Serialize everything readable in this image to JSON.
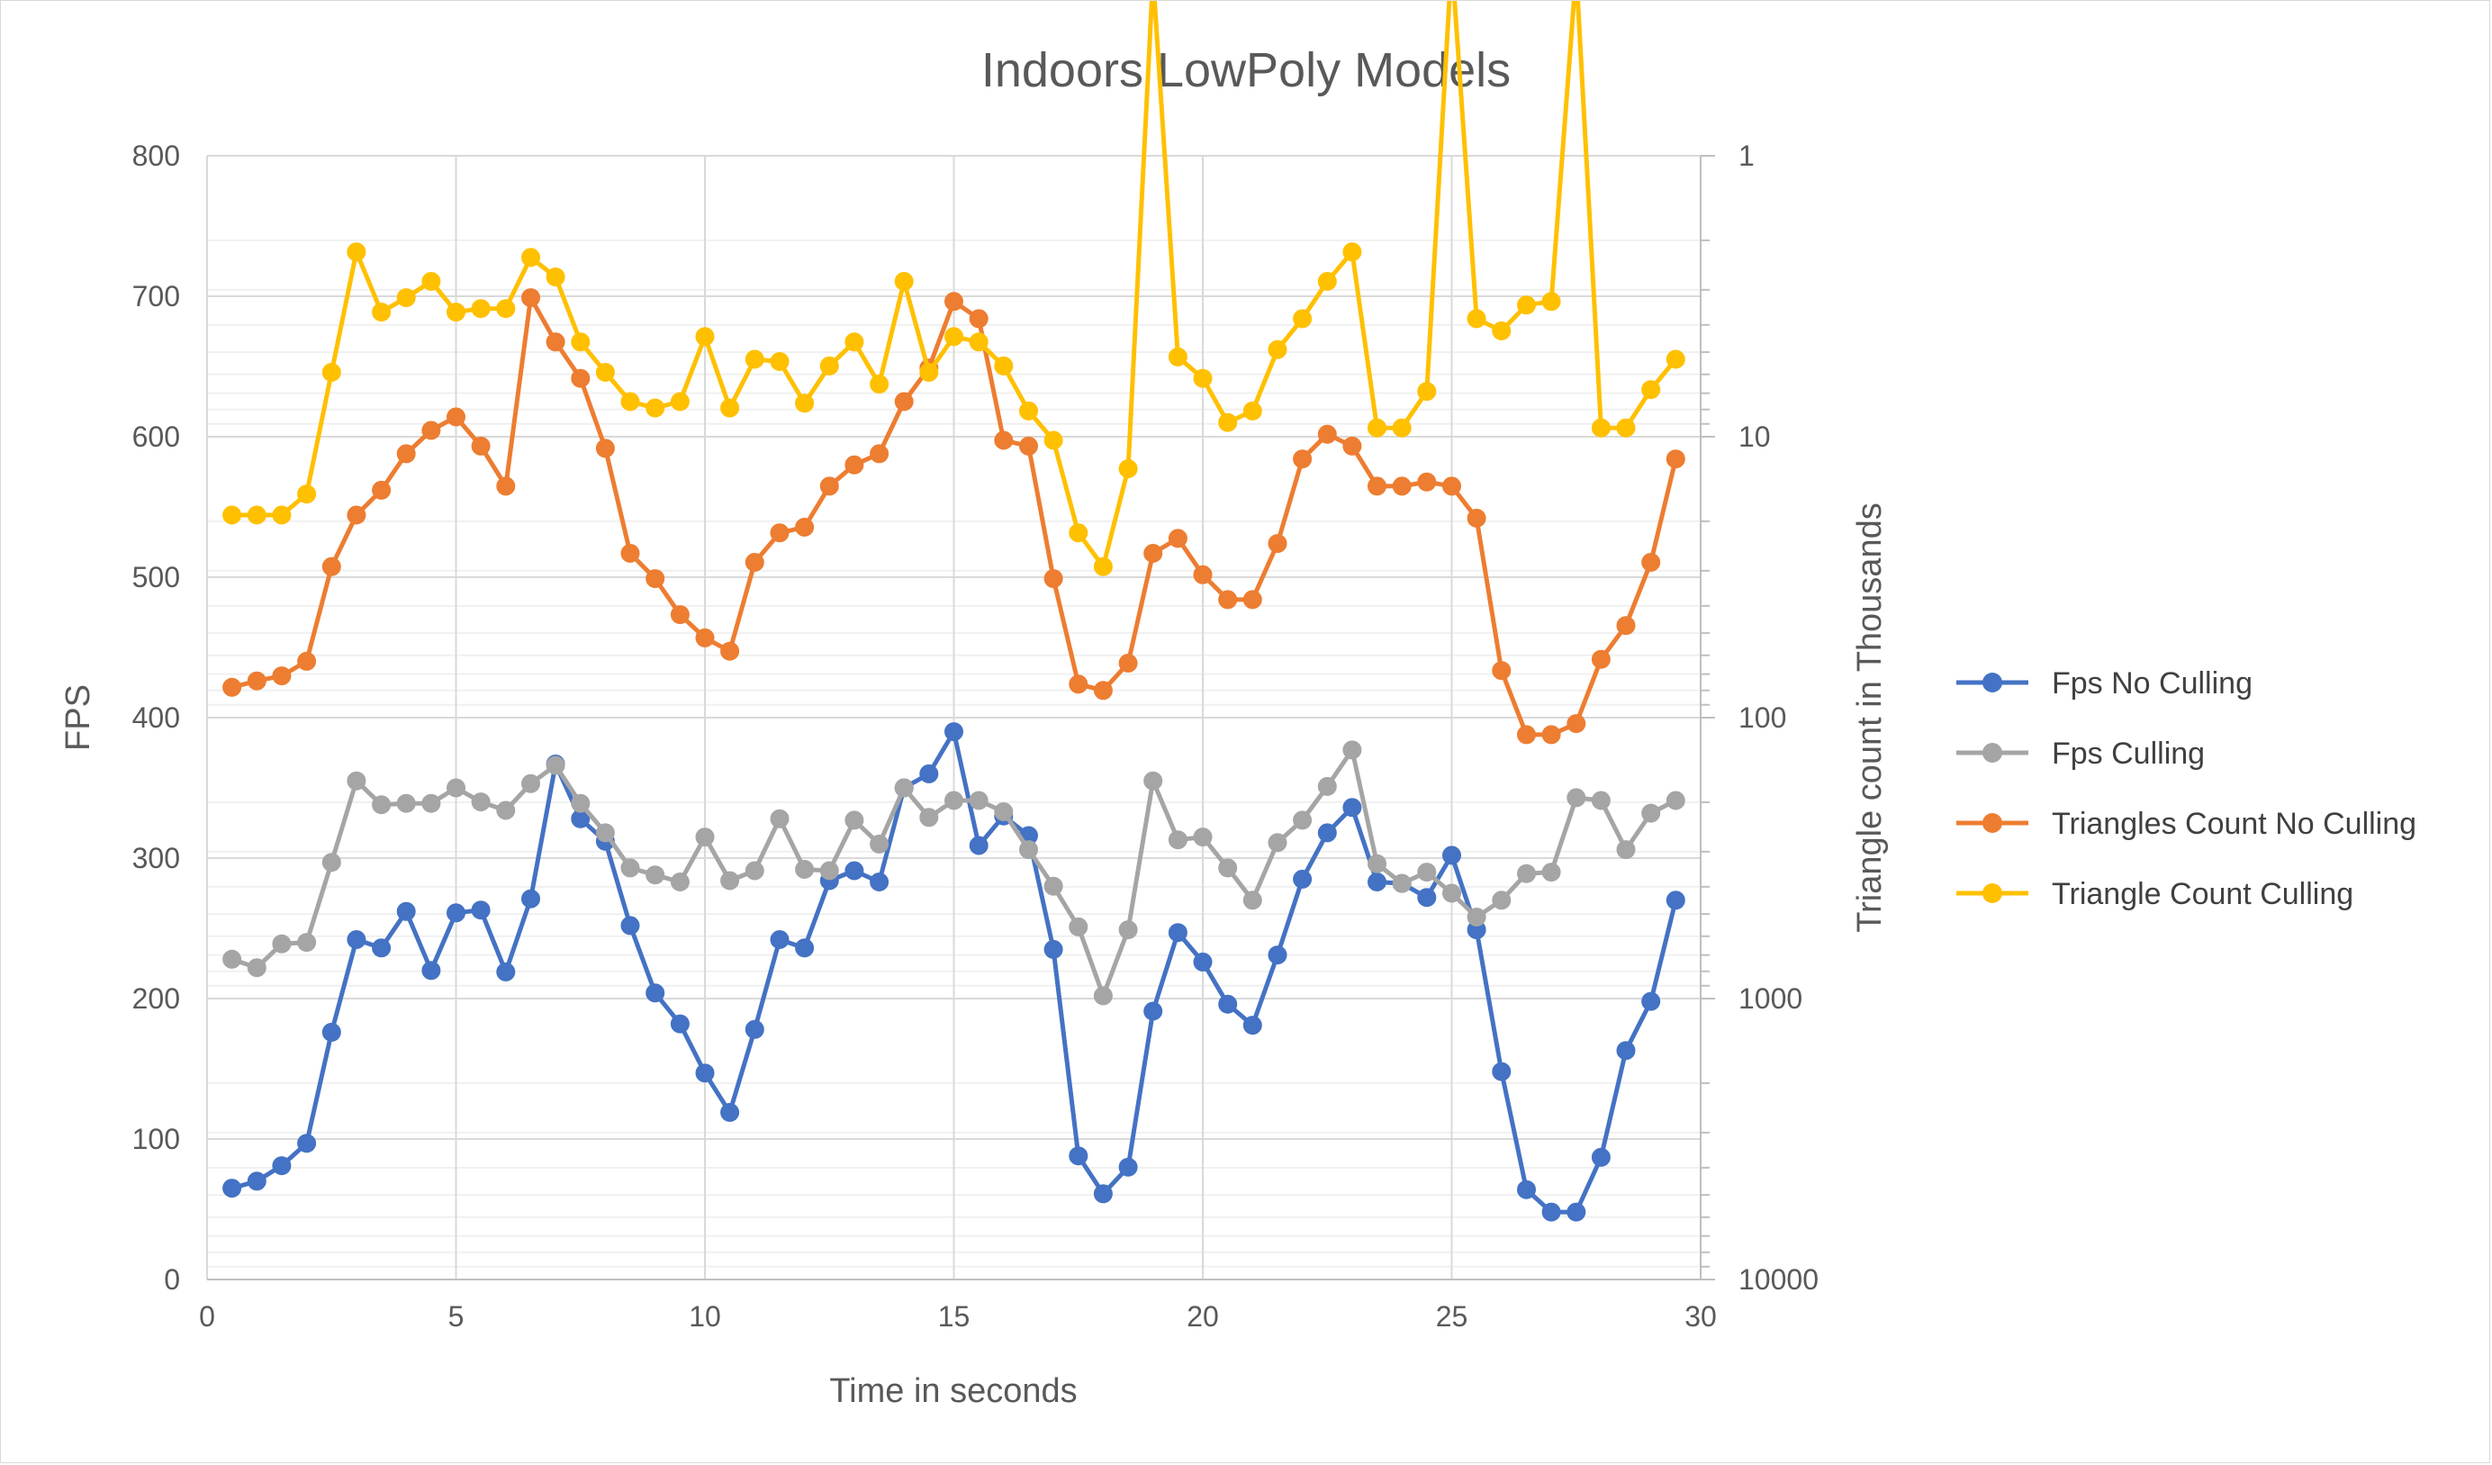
{
  "chart_data": {
    "type": "line",
    "title": "Indoors LowPoly Models",
    "xlabel": "Time in seconds",
    "ylabel": "FPS",
    "y2label": "Triangle count in Thousands",
    "xlim": [
      0,
      30
    ],
    "ylim": [
      0,
      800
    ],
    "y2lim": [
      1,
      10000
    ],
    "y2_scale": "log",
    "x_ticks": [
      "0",
      "5",
      "10",
      "15",
      "20",
      "25",
      "30"
    ],
    "y_ticks": [
      "0",
      "100",
      "200",
      "300",
      "400",
      "500",
      "600",
      "700",
      "800"
    ],
    "y2_ticks": [
      "1",
      "10",
      "100",
      "1000",
      "10000"
    ],
    "grid": true,
    "legend_position": "right",
    "x": [
      0.5,
      1.0,
      1.5,
      2.0,
      2.5,
      3.0,
      3.5,
      4.0,
      4.5,
      5.0,
      5.5,
      6.0,
      6.5,
      7.0,
      7.5,
      8.0,
      8.5,
      9.0,
      9.5,
      10.0,
      10.5,
      11.0,
      11.5,
      12.0,
      12.5,
      13.0,
      13.5,
      14.0,
      14.5,
      15.0,
      15.5,
      16.0,
      16.5,
      17.0,
      17.5,
      18.0,
      18.5,
      19.0,
      19.5,
      20.0,
      20.5,
      21.0,
      21.5,
      22.0,
      22.5,
      23.0,
      23.5,
      24.0,
      24.5,
      25.0,
      25.5,
      26.0,
      26.5,
      27.0,
      27.5,
      28.0,
      28.5,
      29.0,
      29.5
    ],
    "series": [
      {
        "name": "Fps No Culling",
        "axis": "left",
        "color": "#4472c4",
        "values": [
          65,
          70,
          81,
          97,
          176,
          242,
          236,
          262,
          220,
          261,
          263,
          219,
          271,
          367,
          328,
          312,
          252,
          204,
          182,
          147,
          119,
          178,
          242,
          236,
          284,
          291,
          283,
          350,
          360,
          390,
          309,
          330,
          316,
          235,
          88,
          61,
          80,
          191,
          247,
          226,
          196,
          181,
          231,
          285,
          318,
          336,
          283,
          282,
          272,
          302,
          249,
          148,
          64,
          48,
          48,
          87,
          163,
          198,
          270
        ]
      },
      {
        "name": "Fps Culling",
        "axis": "left",
        "color": "#a5a5a5",
        "values": [
          228,
          222,
          239,
          240,
          297,
          355,
          338,
          339,
          339,
          350,
          340,
          334,
          353,
          366,
          339,
          318,
          293,
          288,
          283,
          315,
          284,
          291,
          328,
          292,
          291,
          327,
          310,
          350,
          329,
          341,
          341,
          333,
          306,
          280,
          251,
          202,
          249,
          355,
          313,
          315,
          293,
          270,
          311,
          327,
          351,
          377,
          296,
          282,
          290,
          275,
          258,
          270,
          289,
          290,
          343,
          341,
          306,
          332,
          341
        ]
      },
      {
        "name": "Triangles Count No Culling",
        "axis": "right",
        "color": "#ed7d31",
        "values": [
          78,
          74,
          71,
          63,
          29,
          19,
          15.5,
          11.5,
          9.5,
          8.5,
          10.8,
          15,
          3.2,
          4.6,
          6.2,
          11,
          26,
          32,
          43,
          52,
          58,
          28,
          22,
          21,
          15,
          12.6,
          11.5,
          7.5,
          5.7,
          3.3,
          3.8,
          10.3,
          10.8,
          32,
          76,
          80,
          64,
          26,
          23,
          31,
          38,
          38,
          24,
          12,
          9.8,
          10.8,
          15,
          15,
          14.5,
          15,
          19.5,
          68,
          115,
          115,
          105,
          62,
          47,
          28,
          12
        ]
      },
      {
        "name": "Triangle Count Culling",
        "axis": "right",
        "color": "#ffc000",
        "values": [
          19,
          19,
          19,
          16,
          5.9,
          2.2,
          3.6,
          3.2,
          2.8,
          3.6,
          3.5,
          3.5,
          2.3,
          2.7,
          4.6,
          5.9,
          7.5,
          7.9,
          7.5,
          4.4,
          7.9,
          5.3,
          5.4,
          7.6,
          5.6,
          4.6,
          6.5,
          2.8,
          5.9,
          4.4,
          4.6,
          5.6,
          8.1,
          10.3,
          22,
          29,
          13,
          0.23,
          5.2,
          6.2,
          8.9,
          8.1,
          4.9,
          3.8,
          2.8,
          2.2,
          9.3,
          9.3,
          6.9,
          0.2,
          3.8,
          4.2,
          3.4,
          3.3,
          0.22,
          9.3,
          9.3,
          6.8,
          5.3
        ]
      }
    ]
  }
}
